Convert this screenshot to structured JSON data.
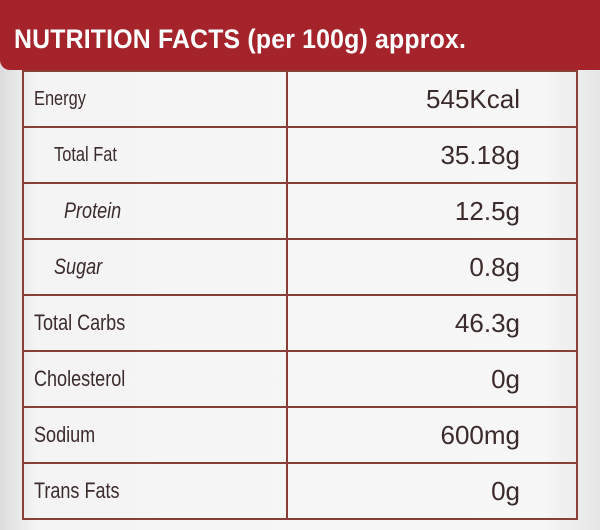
{
  "header": {
    "title": "NUTRITION FACTS (per 100g) approx."
  },
  "table": {
    "rows": [
      [
        "Energy",
        "545Kcal"
      ],
      [
        "Total Fat",
        "35.18g"
      ],
      [
        "Protein",
        "12.5g"
      ],
      [
        "Sugar",
        "0.8g"
      ],
      [
        "Total Carbs",
        "46.3g"
      ],
      [
        "Cholesterol",
        "0g"
      ],
      [
        "Sodium",
        "600mg"
      ],
      [
        "Trans Fats",
        "0g"
      ]
    ]
  }
}
